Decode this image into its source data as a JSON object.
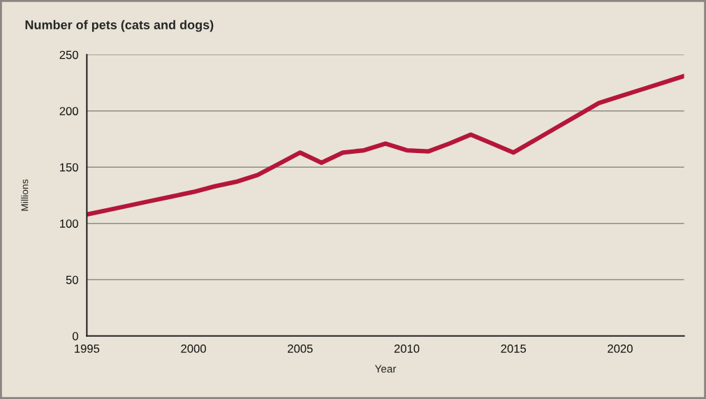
{
  "chart_data": {
    "type": "line",
    "title": "Number of pets (cats and dogs)",
    "xlabel": "Year",
    "ylabel": "Millions",
    "x": [
      1995,
      1996,
      1997,
      1998,
      1999,
      2000,
      2001,
      2002,
      2003,
      2004,
      2005,
      2006,
      2007,
      2008,
      2009,
      2010,
      2011,
      2012,
      2013,
      2014,
      2015,
      2016,
      2017,
      2018,
      2019,
      2020,
      2021,
      2022,
      2023
    ],
    "series": [
      {
        "color": "#b5163a",
        "values": [
          108,
          112,
          116,
          120,
          124,
          128,
          133,
          137,
          143,
          153,
          163,
          154,
          163,
          165,
          171,
          165,
          164,
          171,
          179,
          171,
          163,
          174,
          185,
          196,
          207,
          213,
          219,
          225,
          231
        ]
      }
    ],
    "xlim": [
      1995,
      2023
    ],
    "xticks": [
      1995,
      2000,
      2005,
      2010,
      2015,
      2020
    ],
    "ylim": [
      0,
      250
    ],
    "yticks": [
      0,
      50,
      100,
      150,
      200,
      250
    ],
    "grid": "y",
    "marker": "none",
    "line_style": "solid"
  }
}
